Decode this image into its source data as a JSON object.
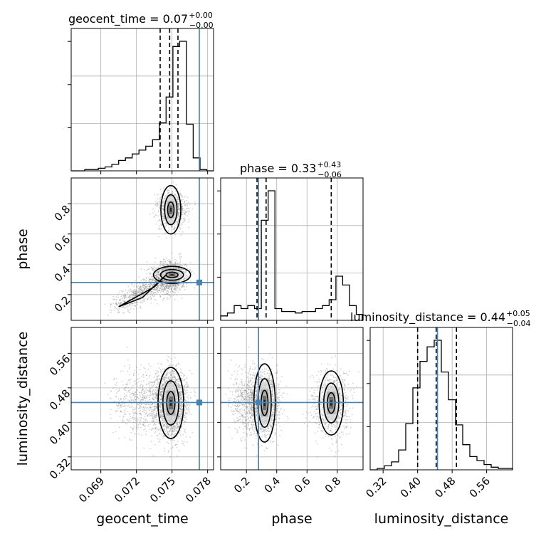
{
  "chart_data": {
    "type": "corner",
    "parameters": [
      "geocent_time",
      "phase",
      "luminosity_distance"
    ],
    "axis_labels": {
      "geocent_time": "geocent_time",
      "phase": "phase",
      "luminosity_distance": "luminosity_distance"
    },
    "titles": [
      {
        "param": "geocent_time",
        "text": "geocent_time = 0.07",
        "plus": "+0.00",
        "minus": "−0.00"
      },
      {
        "param": "phase",
        "text": "phase = 0.33",
        "plus": "+0.43",
        "minus": "−0.06"
      },
      {
        "param": "luminosity_distance",
        "text": "luminosity_distance = 0.44",
        "plus": "+0.05",
        "minus": "−0.04"
      }
    ],
    "ranges": {
      "geocent_time": [
        0.0665,
        0.0785
      ],
      "phase": [
        0.03,
        0.97
      ],
      "luminosity_distance": [
        0.29,
        0.62
      ]
    },
    "ticks": {
      "geocent_time": {
        "values": [
          0.069,
          0.072,
          0.075,
          0.078
        ],
        "labels": [
          "0.069",
          "0.072",
          "0.075",
          "0.078"
        ]
      },
      "phase": {
        "values": [
          0.2,
          0.4,
          0.6,
          0.8
        ],
        "labels": [
          "0.2",
          "0.4",
          "0.6",
          "0.8"
        ]
      },
      "luminosity_distance": {
        "values": [
          0.32,
          0.4,
          0.48,
          0.56
        ],
        "labels": [
          "0.32",
          "0.40",
          "0.48",
          "0.56"
        ]
      }
    },
    "truths": {
      "geocent_time": 0.0773,
      "phase": 0.28,
      "luminosity_distance": 0.446
    },
    "truth_color": "#4682b4",
    "quantiles": {
      "geocent_time": [
        0.074,
        0.0748,
        0.0755
      ],
      "phase": [
        0.27,
        0.33,
        0.76
      ],
      "luminosity_distance": [
        0.4,
        0.443,
        0.49
      ]
    },
    "histograms": {
      "geocent_time": {
        "edges_range": [
          0.0665,
          0.0785
        ],
        "counts": [
          0,
          0,
          1,
          1,
          2,
          3,
          5,
          8,
          10,
          13,
          16,
          19,
          24,
          37,
          57,
          96,
          100,
          36,
          10,
          1,
          0
        ]
      },
      "phase": {
        "edges_range": [
          0.03,
          0.97
        ],
        "counts": [
          3,
          5,
          10,
          8,
          10,
          8,
          68,
          88,
          8,
          6,
          6,
          5,
          6,
          6,
          8,
          10,
          14,
          30,
          24,
          10,
          4
        ]
      },
      "luminosity_distance": {
        "edges_range": [
          0.29,
          0.62
        ],
        "counts": [
          0,
          1,
          3,
          6,
          15,
          35,
          62,
          82,
          93,
          98,
          74,
          53,
          34,
          19,
          10,
          7,
          4,
          2,
          1,
          1
        ]
      }
    },
    "grid": true,
    "colors": {
      "line": "#000000",
      "truth": "#4682b4",
      "scatter": "#808080"
    }
  }
}
